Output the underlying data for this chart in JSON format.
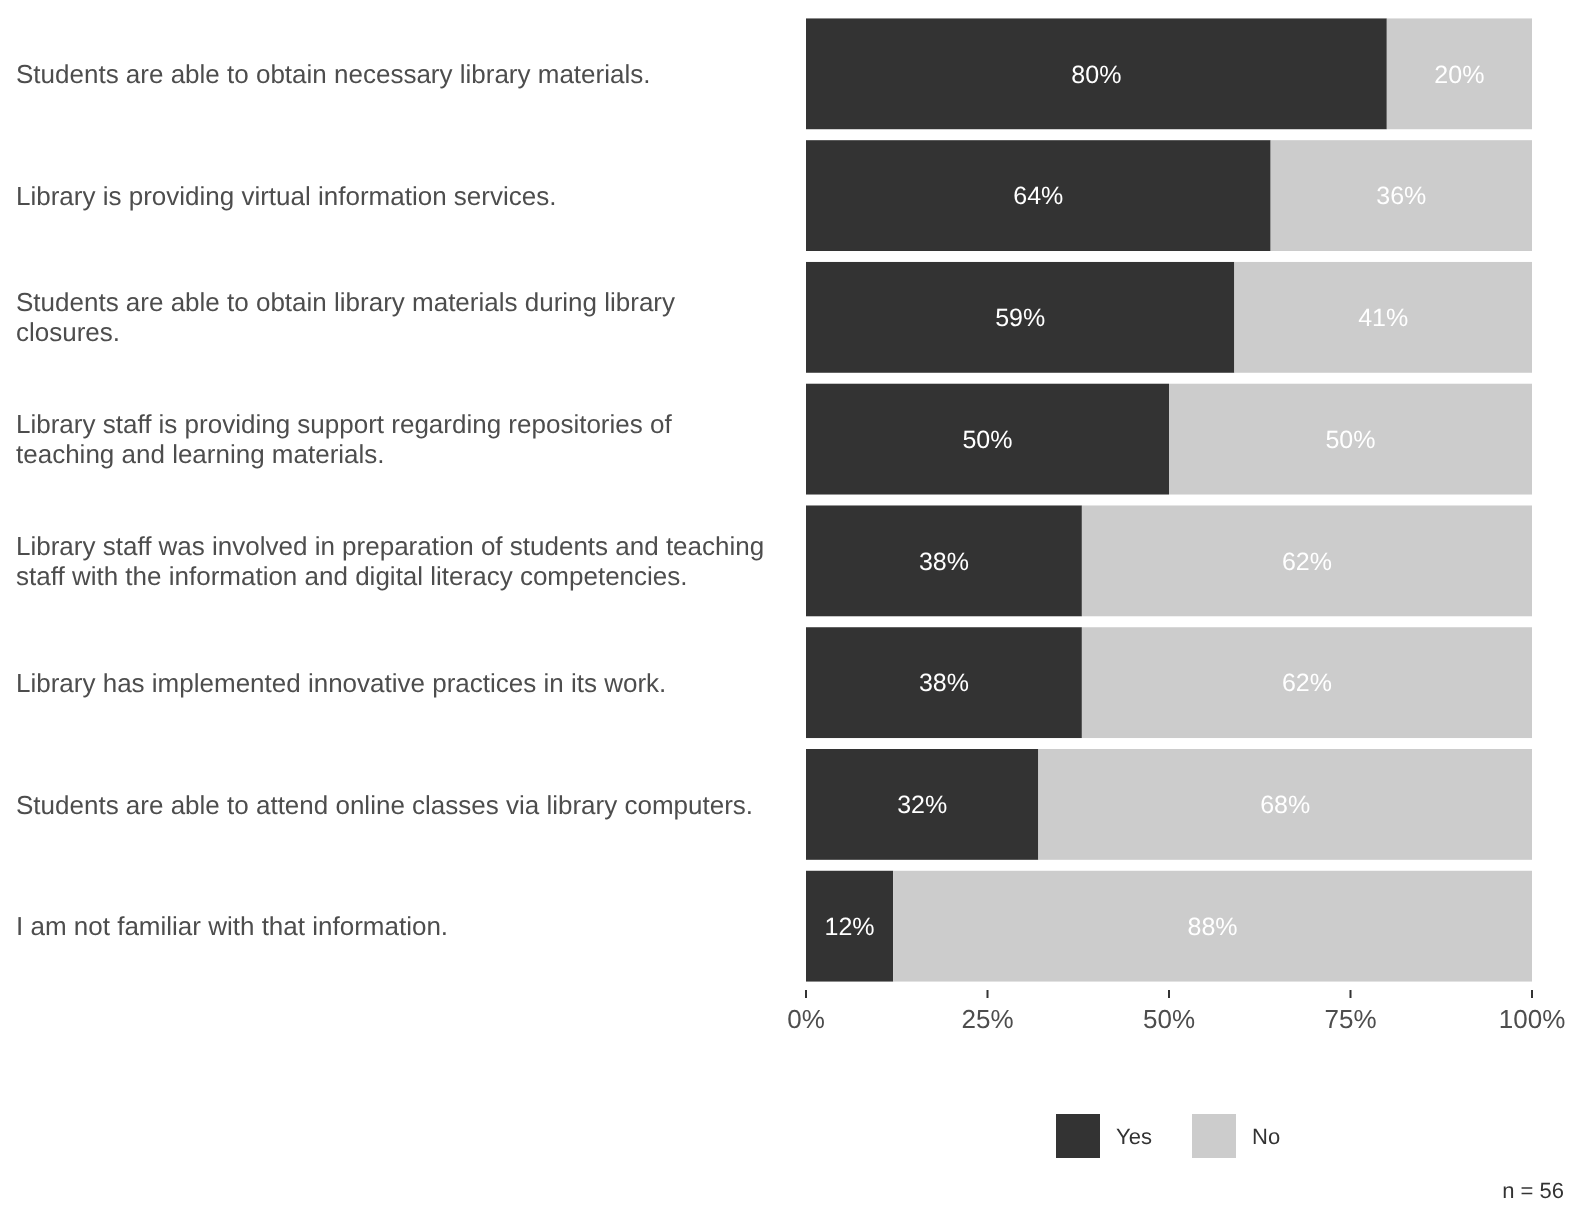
{
  "chart_data": {
    "type": "bar",
    "orientation": "horizontal",
    "stacked": true,
    "categories": [
      "Students are able to obtain necessary library materials.",
      "Library is providing virtual information services.",
      "Students are able to obtain library materials during library closures.",
      "Library staff is providing support regarding repositories of teaching and learning materials.",
      "Library staff was involved in preparation of students and teaching staff with the information and digital literacy competencies.",
      "Library has implemented innovative practices in its work.",
      "Students are able to attend online classes via library computers.",
      "I am not familiar with that information."
    ],
    "series": [
      {
        "name": "Yes",
        "color": "#333333",
        "values": [
          80,
          64,
          59,
          50,
          38,
          38,
          32,
          12
        ],
        "value_labels": [
          "80%",
          "64%",
          "59%",
          "50%",
          "38%",
          "38%",
          "32%",
          "12%"
        ]
      },
      {
        "name": "No",
        "color": "#cccccc",
        "values": [
          20,
          36,
          41,
          50,
          62,
          62,
          68,
          88
        ],
        "value_labels": [
          "20%",
          "36%",
          "41%",
          "50%",
          "62%",
          "62%",
          "68%",
          "88%"
        ]
      }
    ],
    "xlim": [
      0,
      100
    ],
    "xticks": [
      {
        "value": 0,
        "label": "0%"
      },
      {
        "value": 25,
        "label": "25%"
      },
      {
        "value": 50,
        "label": "50%"
      },
      {
        "value": 75,
        "label": "75%"
      },
      {
        "value": 100,
        "label": "100%"
      }
    ],
    "grid": false,
    "legend": "bottom",
    "annotations": [
      "n = 56"
    ]
  }
}
